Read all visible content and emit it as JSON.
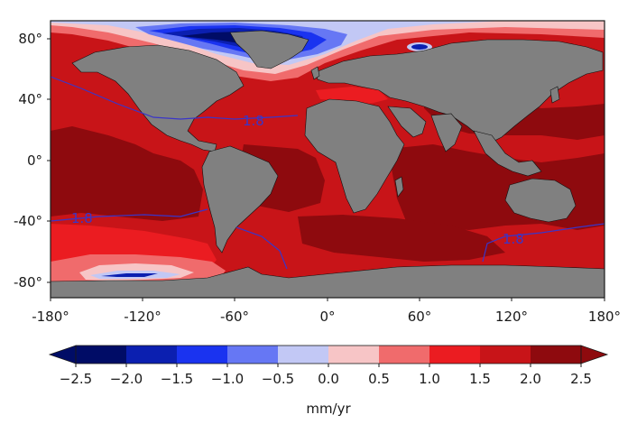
{
  "map": {
    "type": "global sea level trend map",
    "projection": "equirectangular",
    "y_ticks": [
      "80°",
      "40°",
      "0°",
      "-40°",
      "-80°"
    ],
    "x_ticks": [
      "-180°",
      "-120°",
      "-60°",
      "0°",
      "60°",
      "120°",
      "180°"
    ],
    "contour_level": "1.8",
    "contour_labels": [
      "1.8",
      "1.8",
      "1.8"
    ],
    "colors": {
      "land": "#808080",
      "ocean_base": "#c81418",
      "ocean_dark": "#8e0a0e",
      "contour": "#3a35c8"
    }
  },
  "colorbar": {
    "unit": "mm/yr",
    "tick_labels": [
      "−2.5",
      "−2.0",
      "−1.5",
      "−1.0",
      "−0.5",
      "0.0",
      "0.5",
      "1.0",
      "1.5",
      "2.0",
      "2.5"
    ],
    "bins": [
      {
        "range": "-2.5 to -2.0",
        "color": "#000c66"
      },
      {
        "range": "-2.0 to -1.5",
        "color": "#0b1fb0"
      },
      {
        "range": "-1.5 to -1.0",
        "color": "#1a33f0"
      },
      {
        "range": "-1.0 to -0.5",
        "color": "#6677f4"
      },
      {
        "range": "-0.5 to 0.0",
        "color": "#c2c8f5"
      },
      {
        "range": "0.0 to 0.5",
        "color": "#f7c5c6"
      },
      {
        "range": "0.5 to 1.0",
        "color": "#f06b6c"
      },
      {
        "range": "1.0 to 1.5",
        "color": "#eb1c21"
      },
      {
        "range": "1.5 to 2.0",
        "color": "#c81418"
      },
      {
        "range": "2.0 to 2.5",
        "color": "#8e0a0e"
      }
    ]
  }
}
